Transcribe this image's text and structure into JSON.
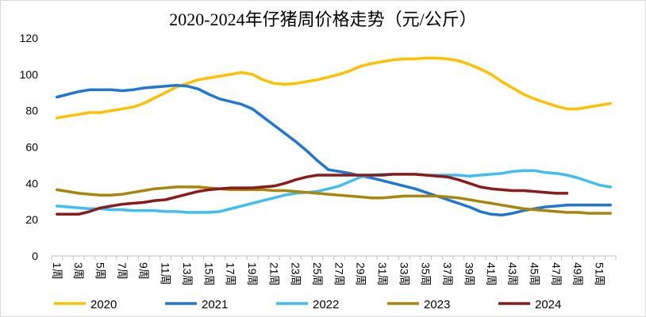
{
  "chart_data": {
    "type": "line",
    "title": "2020-2024年仔猪周价格走势（元/公斤）",
    "categories": [
      "1周",
      null,
      "3周",
      null,
      "5周",
      null,
      "7周",
      null,
      "9周",
      null,
      "11周",
      null,
      "13周",
      null,
      "15周",
      null,
      "17周",
      null,
      "19周",
      null,
      "21周",
      null,
      "23周",
      null,
      "25周",
      null,
      "27周",
      null,
      "29周",
      null,
      "31周",
      null,
      "33周",
      null,
      "35周",
      null,
      "37周",
      null,
      "39周",
      null,
      "41周",
      null,
      "43周",
      null,
      "45周",
      null,
      "47周",
      null,
      "49周",
      null,
      "51周",
      null
    ],
    "series": [
      {
        "name": "2020",
        "color": "#ffc000",
        "values": [
          76,
          77,
          78,
          79,
          79,
          80,
          81,
          82,
          84,
          87,
          90,
          93,
          95,
          97,
          98,
          99,
          100,
          101,
          100,
          97,
          95,
          94.5,
          95,
          96,
          97,
          98.5,
          100,
          102,
          104.5,
          106,
          107,
          108,
          108.5,
          108.5,
          109,
          109,
          108.5,
          107.5,
          105.5,
          103,
          100,
          96,
          92.5,
          89,
          86.5,
          84.5,
          82.5,
          81,
          81,
          82,
          83,
          84
        ]
      },
      {
        "name": "2021",
        "color": "#1f77d4",
        "values": [
          87.5,
          89,
          90.5,
          91.5,
          91.5,
          91.5,
          91,
          91.5,
          92.5,
          93,
          93.5,
          94,
          93.5,
          92,
          89,
          86.5,
          85,
          83.5,
          81,
          76.5,
          72,
          67.5,
          63,
          58,
          52.5,
          47.5,
          46.5,
          45.5,
          44,
          43,
          41.5,
          40,
          38.5,
          37,
          35,
          33,
          31,
          29,
          27,
          24.5,
          23,
          22.5,
          23.5,
          25,
          26,
          27,
          27.5,
          28,
          28,
          28,
          28,
          28
        ]
      },
      {
        "name": "2022",
        "color": "#3fbfef",
        "values": [
          27.5,
          27,
          26.5,
          26,
          26,
          25.5,
          25.5,
          25,
          25,
          25,
          24.5,
          24.5,
          24,
          24,
          24,
          24.5,
          26,
          27.5,
          29,
          30.5,
          32,
          33.5,
          34.5,
          35,
          35.5,
          37,
          38.5,
          41,
          43.5,
          44.5,
          45,
          45,
          45,
          45,
          44.5,
          44.5,
          44.5,
          44.5,
          44,
          44.5,
          45,
          45.5,
          46.5,
          47,
          47,
          46,
          45.5,
          44.5,
          43,
          41,
          39,
          38
        ]
      },
      {
        "name": "2023",
        "color": "#a8860b",
        "values": [
          36.5,
          35.5,
          34.5,
          34,
          33.5,
          33.5,
          34,
          35,
          36,
          37,
          37.5,
          38,
          38,
          38,
          37.5,
          37,
          36.5,
          36.5,
          36.5,
          36.5,
          36,
          36,
          35.5,
          35,
          34.5,
          34,
          33.5,
          33,
          32.5,
          32,
          32,
          32.5,
          33,
          33,
          33,
          33,
          32.5,
          32,
          31,
          30,
          29,
          28,
          27,
          26,
          25.5,
          25,
          24.5,
          24,
          24,
          23.5,
          23.5,
          23.5
        ]
      },
      {
        "name": "2024",
        "color": "#8b1a1a",
        "values": [
          23,
          23,
          23,
          24.5,
          26.5,
          27.5,
          28.5,
          29,
          29.5,
          30.5,
          31,
          32.5,
          34,
          35.5,
          36.5,
          37,
          37.5,
          37.5,
          37.5,
          38,
          38.5,
          40,
          42,
          43.5,
          44.5,
          44.5,
          44.5,
          44.5,
          44.5,
          44.5,
          44.5,
          45,
          45,
          45,
          44.5,
          44,
          43.5,
          42,
          40,
          38,
          37,
          36.5,
          36,
          36,
          35.5,
          35,
          34.5,
          34.5,
          null,
          null,
          null,
          null
        ]
      }
    ],
    "ylim": [
      0,
      120
    ],
    "yticks": [
      0,
      20,
      40,
      60,
      80,
      100,
      120
    ],
    "grid": false,
    "legend": "bottom"
  }
}
